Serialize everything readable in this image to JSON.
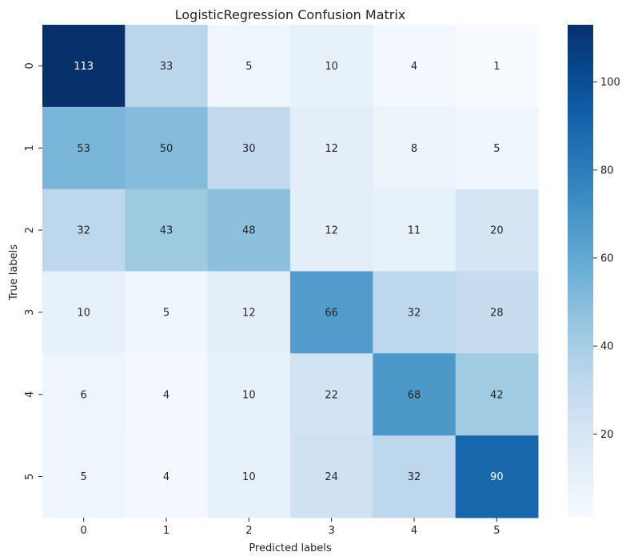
{
  "chart_data": {
    "type": "heatmap",
    "title": "LogisticRegression Confusion Matrix",
    "xlabel": "Predicted labels",
    "ylabel": "True labels",
    "x_categories": [
      "0",
      "1",
      "2",
      "3",
      "4",
      "5"
    ],
    "y_categories": [
      "0",
      "1",
      "2",
      "3",
      "4",
      "5"
    ],
    "values": [
      [
        113,
        33,
        5,
        10,
        4,
        1
      ],
      [
        53,
        50,
        30,
        12,
        8,
        5
      ],
      [
        32,
        43,
        48,
        12,
        11,
        20
      ],
      [
        10,
        5,
        12,
        66,
        32,
        28
      ],
      [
        6,
        4,
        10,
        22,
        68,
        42
      ],
      [
        5,
        4,
        10,
        24,
        32,
        90
      ]
    ],
    "color_range": [
      1,
      113
    ],
    "colormap": "Blues",
    "colorbar_ticks": [
      20,
      40,
      60,
      80,
      100
    ],
    "grid": false,
    "colorbar_position": "right"
  }
}
